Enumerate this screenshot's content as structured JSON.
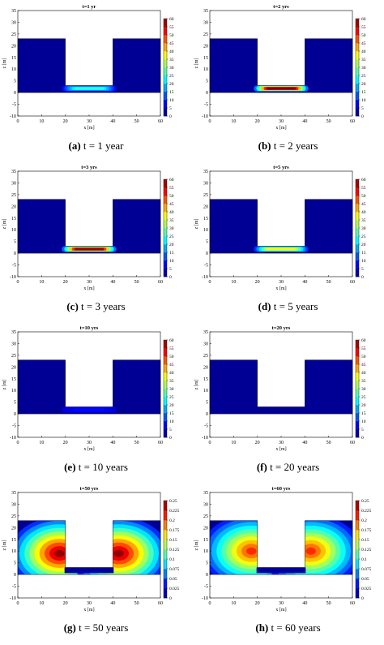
{
  "chart_data": [
    {
      "type": "heatmap",
      "caption_letter": "(a)",
      "caption_rest": "t = 1 year",
      "title": "t=1 yr",
      "xlabel": "x [m]",
      "ylabel": "z [m]",
      "xlim": [
        0,
        60
      ],
      "ylim": [
        -10,
        35
      ],
      "xticks": [
        "0",
        "10",
        "20",
        "30",
        "40",
        "50",
        "60"
      ],
      "yticks": [
        "-10",
        "-5",
        "0",
        "5",
        "10",
        "15",
        "20",
        "25",
        "30",
        "35"
      ],
      "colorbar": {
        "ticks": [
          "0",
          "5",
          "10",
          "15",
          "20",
          "25",
          "30",
          "35",
          "40",
          "45",
          "50",
          "55",
          "60"
        ]
      },
      "domain": {
        "outer": {
          "x": [
            0,
            60
          ],
          "z": [
            0,
            23
          ]
        },
        "cavity": {
          "x": [
            20,
            40
          ],
          "z_bottom": 3
        }
      },
      "field": {
        "kind": "bottom_layer",
        "peak_level": 25,
        "layer_top_z": 3,
        "layer_bottom_z": 0.5
      }
    },
    {
      "type": "heatmap",
      "caption_letter": "(b)",
      "caption_rest": "t = 2 years",
      "title": "t=2 yrs",
      "xlabel": "x [m]",
      "ylabel": "z [m]",
      "xlim": [
        0,
        60
      ],
      "ylim": [
        -10,
        35
      ],
      "xticks": [
        "0",
        "10",
        "20",
        "30",
        "40",
        "50",
        "60"
      ],
      "yticks": [
        "-10",
        "-5",
        "0",
        "5",
        "10",
        "15",
        "20",
        "25",
        "30",
        "35"
      ],
      "colorbar": {
        "ticks": [
          "0",
          "5",
          "10",
          "15",
          "20",
          "25",
          "30",
          "35",
          "40",
          "45",
          "50",
          "55",
          "60"
        ]
      },
      "domain": {
        "outer": {
          "x": [
            0,
            60
          ],
          "z": [
            0,
            23
          ]
        },
        "cavity": {
          "x": [
            20,
            40
          ],
          "z_bottom": 3
        }
      },
      "field": {
        "kind": "bottom_layer",
        "peak_level": 60,
        "layer_top_z": 3,
        "layer_bottom_z": 0.5
      }
    },
    {
      "type": "heatmap",
      "caption_letter": "(c)",
      "caption_rest": "t = 3 years",
      "title": "t=3 yrs",
      "xlabel": "x [m]",
      "ylabel": "z [m]",
      "xlim": [
        0,
        60
      ],
      "ylim": [
        -10,
        35
      ],
      "xticks": [
        "0",
        "10",
        "20",
        "30",
        "40",
        "50",
        "60"
      ],
      "yticks": [
        "-10",
        "-5",
        "0",
        "5",
        "10",
        "15",
        "20",
        "25",
        "30",
        "35"
      ],
      "colorbar": {
        "ticks": [
          "0",
          "5",
          "10",
          "15",
          "20",
          "25",
          "30",
          "35",
          "40",
          "45",
          "50",
          "55",
          "60"
        ]
      },
      "domain": {
        "outer": {
          "x": [
            0,
            60
          ],
          "z": [
            0,
            23
          ]
        },
        "cavity": {
          "x": [
            20,
            40
          ],
          "z_bottom": 3
        }
      },
      "field": {
        "kind": "bottom_layer",
        "peak_level": 58,
        "layer_top_z": 3,
        "layer_bottom_z": 0.5
      }
    },
    {
      "type": "heatmap",
      "caption_letter": "(d)",
      "caption_rest": "t = 5 years",
      "title": "t=5 yrs",
      "xlabel": "x [m]",
      "ylabel": "z [m]",
      "xlim": [
        0,
        60
      ],
      "ylim": [
        -10,
        35
      ],
      "xticks": [
        "0",
        "10",
        "20",
        "30",
        "40",
        "50",
        "60"
      ],
      "yticks": [
        "-10",
        "-5",
        "0",
        "5",
        "10",
        "15",
        "20",
        "25",
        "30",
        "35"
      ],
      "colorbar": {
        "ticks": [
          "0",
          "5",
          "10",
          "15",
          "20",
          "25",
          "30",
          "35",
          "40",
          "45",
          "50",
          "55",
          "60"
        ]
      },
      "domain": {
        "outer": {
          "x": [
            0,
            60
          ],
          "z": [
            0,
            23
          ]
        },
        "cavity": {
          "x": [
            20,
            40
          ],
          "z_bottom": 3
        }
      },
      "field": {
        "kind": "bottom_layer",
        "peak_level": 38,
        "layer_top_z": 3,
        "layer_bottom_z": 0.5
      }
    },
    {
      "type": "heatmap",
      "caption_letter": "(e)",
      "caption_rest": "t = 10 years",
      "title": "t=10 yrs",
      "xlabel": "x [m]",
      "ylabel": "z [m]",
      "xlim": [
        0,
        60
      ],
      "ylim": [
        -10,
        35
      ],
      "xticks": [
        "0",
        "10",
        "20",
        "30",
        "40",
        "50",
        "60"
      ],
      "yticks": [
        "-10",
        "-5",
        "0",
        "5",
        "10",
        "15",
        "20",
        "25",
        "30",
        "35"
      ],
      "colorbar": {
        "ticks": [
          "0",
          "5",
          "10",
          "15",
          "20",
          "25",
          "30",
          "35",
          "40",
          "45",
          "50",
          "55",
          "60"
        ]
      },
      "domain": {
        "outer": {
          "x": [
            0,
            60
          ],
          "z": [
            0,
            23
          ]
        },
        "cavity": {
          "x": [
            20,
            40
          ],
          "z_bottom": 3
        }
      },
      "field": {
        "kind": "bottom_layer",
        "peak_level": 8,
        "layer_top_z": 3,
        "layer_bottom_z": 0.5
      }
    },
    {
      "type": "heatmap",
      "caption_letter": "(f)",
      "caption_rest": "t = 20 years",
      "title": "t=20 yrs",
      "xlabel": "x [m]",
      "ylabel": "z [m]",
      "xlim": [
        0,
        60
      ],
      "ylim": [
        -10,
        35
      ],
      "xticks": [
        "0",
        "10",
        "20",
        "30",
        "40",
        "50",
        "60"
      ],
      "yticks": [
        "-10",
        "-5",
        "0",
        "5",
        "10",
        "15",
        "20",
        "25",
        "30",
        "35"
      ],
      "colorbar": {
        "ticks": [
          "0",
          "5",
          "10",
          "15",
          "20",
          "25",
          "30",
          "35",
          "40",
          "45",
          "50",
          "55",
          "60"
        ]
      },
      "domain": {
        "outer": {
          "x": [
            0,
            60
          ],
          "z": [
            0,
            23
          ]
        },
        "cavity": {
          "x": [
            20,
            40
          ],
          "z_bottom": 3
        }
      },
      "field": {
        "kind": "uniform",
        "peak_level": 0
      }
    },
    {
      "type": "heatmap",
      "caption_letter": "(g)",
      "caption_rest": "t = 50 years",
      "title": "t=50 yrs",
      "xlabel": "x [m]",
      "ylabel": "z [m]",
      "xlim": [
        0,
        60
      ],
      "ylim": [
        -10,
        35
      ],
      "xticks": [
        "0",
        "10",
        "20",
        "30",
        "40",
        "50",
        "60"
      ],
      "yticks": [
        "-10",
        "-5",
        "0",
        "5",
        "10",
        "15",
        "20",
        "25",
        "30",
        "35"
      ],
      "colorbar": {
        "ticks": [
          "0",
          "0.025",
          "0.05",
          "0.075",
          "0.1",
          "0.125",
          "0.15",
          "0.175",
          "0.2",
          "0.225",
          "0.25"
        ]
      },
      "domain": {
        "outer": {
          "x": [
            0,
            60
          ],
          "z": [
            0,
            23
          ]
        },
        "cavity": {
          "x": [
            20,
            40
          ],
          "z_bottom": 3
        }
      },
      "field": {
        "kind": "side_lobes",
        "peak_fraction": 0.98,
        "center_z": 9,
        "left_center_x": 17.5,
        "right_center_x": 42.5
      }
    },
    {
      "type": "heatmap",
      "caption_letter": "(h)",
      "caption_rest": "t = 60 years",
      "title": "t=60 yrs",
      "xlabel": "x [m]",
      "ylabel": "z [m]",
      "xlim": [
        0,
        60
      ],
      "ylim": [
        -10,
        35
      ],
      "xticks": [
        "0",
        "10",
        "20",
        "30",
        "40",
        "50",
        "60"
      ],
      "yticks": [
        "-10",
        "-5",
        "0",
        "5",
        "10",
        "15",
        "20",
        "25",
        "30",
        "35"
      ],
      "colorbar": {
        "ticks": [
          "0",
          "0.025",
          "0.05",
          "0.075",
          "0.1",
          "0.125",
          "0.15",
          "0.175",
          "0.2",
          "0.225",
          "0.25"
        ]
      },
      "domain": {
        "outer": {
          "x": [
            0,
            60
          ],
          "z": [
            0,
            23
          ]
        },
        "cavity": {
          "x": [
            20,
            40
          ],
          "z_bottom": 3
        }
      },
      "field": {
        "kind": "side_lobes",
        "peak_fraction": 0.82,
        "center_z": 10,
        "left_center_x": 17.5,
        "right_center_x": 42.5
      }
    }
  ]
}
